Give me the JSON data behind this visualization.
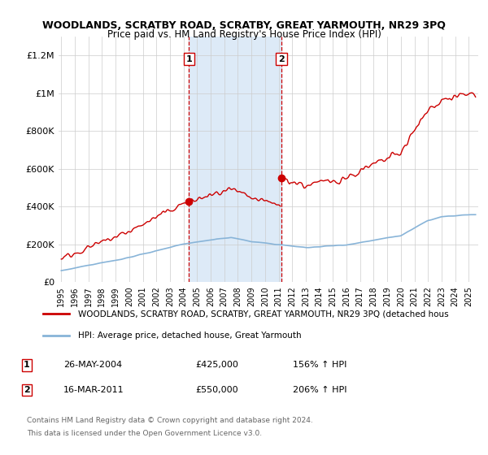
{
  "title": "WOODLANDS, SCRATBY ROAD, SCRATBY, GREAT YARMOUTH, NR29 3PQ",
  "subtitle": "Price paid vs. HM Land Registry's House Price Index (HPI)",
  "hpi_label": "HPI: Average price, detached house, Great Yarmouth",
  "property_label": "WOODLANDS, SCRATBY ROAD, SCRATBY, GREAT YARMOUTH, NR29 3PQ (detached hous",
  "transactions": [
    {
      "num": 1,
      "date": "26-MAY-2004",
      "price": 425000,
      "hpi_pct": "156% ↑ HPI",
      "x_year": 2004.4
    },
    {
      "num": 2,
      "date": "16-MAR-2011",
      "price": 550000,
      "hpi_pct": "206% ↑ HPI",
      "x_year": 2011.2
    }
  ],
  "background_color": "#ffffff",
  "plot_bg_color": "#ffffff",
  "hpi_line_color": "#88b4d8",
  "property_line_color": "#cc0000",
  "shade_color": "#ddeaf7",
  "vline_color": "#cc0000",
  "ylim": [
    0,
    1300000
  ],
  "xlim_start": 1994.8,
  "xlim_end": 2025.7,
  "yticks": [
    0,
    200000,
    400000,
    600000,
    800000,
    1000000,
    1200000
  ],
  "ytick_labels": [
    "£0",
    "£200K",
    "£400K",
    "£600K",
    "£800K",
    "£1M",
    "£1.2M"
  ],
  "footer_line1": "Contains HM Land Registry data © Crown copyright and database right 2024.",
  "footer_line2": "This data is licensed under the Open Government Licence v3.0."
}
